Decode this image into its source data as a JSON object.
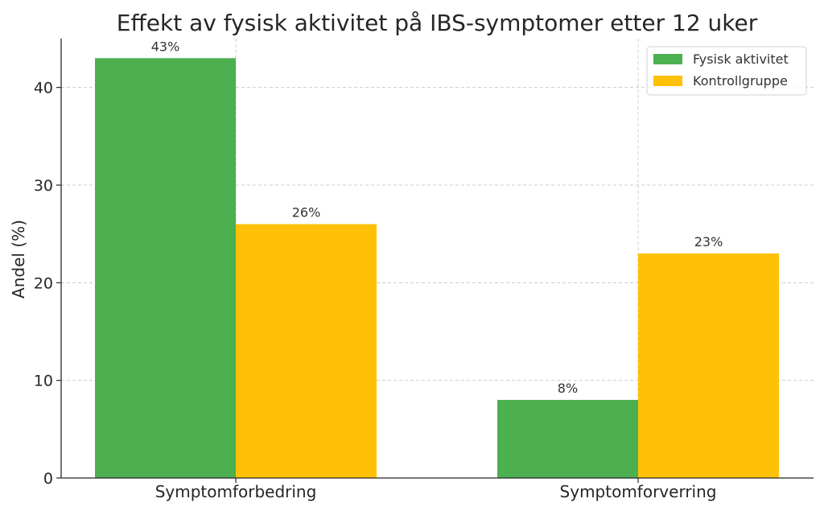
{
  "chart_data": {
    "type": "bar",
    "title": "Effekt av fysisk aktivitet på IBS-symptomer etter 12 uker",
    "xlabel": "",
    "ylabel": "Andel (%)",
    "categories": [
      "Symptomforbedring",
      "Symptomforverring"
    ],
    "series": [
      {
        "name": "Fysisk aktivitet",
        "values": [
          43,
          8
        ],
        "labels": [
          "43%",
          "8%"
        ],
        "color": "#4caf50"
      },
      {
        "name": "Kontrollgruppe",
        "values": [
          26,
          23
        ],
        "labels": [
          "26%",
          "23%"
        ],
        "color": "#ffc107"
      }
    ],
    "ylim": [
      0,
      45
    ],
    "yticks": [
      0,
      10,
      20,
      30,
      40
    ],
    "grid": true,
    "legend_position": "top-right"
  }
}
